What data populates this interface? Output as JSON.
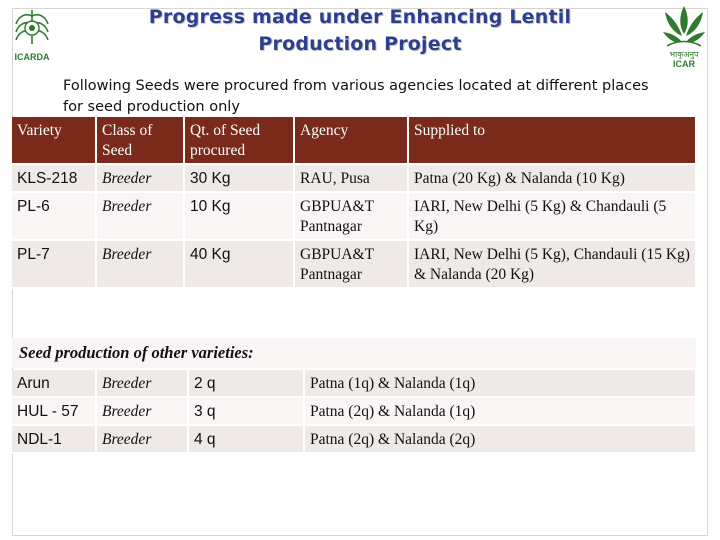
{
  "header": {
    "title_line1": "Progress made under Enhancing Lentil",
    "title_line2": "Production Project",
    "left_logo_text": "ICARDA",
    "right_logo_text": "भाकृअनुप ICAR"
  },
  "intro": "Following Seeds were procured from various agencies located at different places for seed production only",
  "procured": {
    "headers": [
      "Variety",
      "Class of Seed",
      "Qt. of Seed procured",
      "Agency",
      "Supplied to"
    ],
    "rows": [
      [
        "KLS-218",
        "Breeder",
        "30 Kg",
        "RAU, Pusa",
        "Patna (20 Kg) & Nalanda (10 Kg)"
      ],
      [
        "PL-6",
        "Breeder",
        "10 Kg",
        "GBPUA&T Pantnagar",
        "IARI, New Delhi (5 Kg) & Chandauli (5 Kg)"
      ],
      [
        "PL-7",
        "Breeder",
        "40 Kg",
        "GBPUA&T Pantnagar",
        "IARI, New Delhi (5 Kg), Chandauli (15 Kg) & Nalanda (20 Kg)"
      ]
    ]
  },
  "other_heading": "Seed production of other varieties:",
  "other": {
    "rows": [
      [
        "Arun",
        "Breeder",
        "2 q",
        "Patna (1q) & Nalanda (1q)"
      ],
      [
        "HUL - 57",
        "Breeder",
        "3 q",
        "Patna (2q) & Nalanda (1q)"
      ],
      [
        "NDL-1",
        "Breeder",
        "4 q",
        "Patna (2q) & Nalanda (2q)"
      ]
    ]
  },
  "colors": {
    "header_bg": "#7a2a1a",
    "title": "#2e3f8f",
    "row_odd": "#efe9e8",
    "row_even": "#f8f5f4",
    "logo_green": "#2f7a2e"
  }
}
